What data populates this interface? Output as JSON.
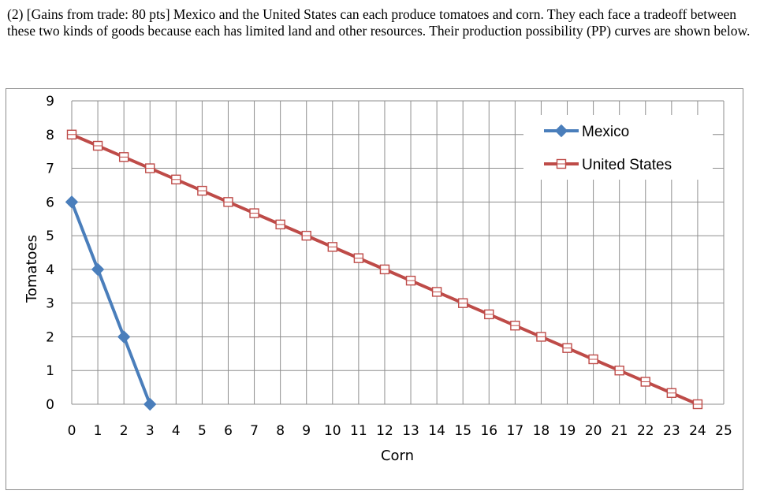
{
  "question": {
    "text": "(2)  [Gains from trade:  80 pts]  Mexico and the United States can each produce tomatoes and corn.  They each face a tradeoff between these two kinds of goods because each has limited land and other resources.  Their production possibility (PP) curves are shown below."
  },
  "chart_data": {
    "type": "line",
    "title": "",
    "xlabel": "Corn",
    "ylabel": "Tomatoes",
    "xlim": [
      0,
      25
    ],
    "ylim": [
      0,
      9
    ],
    "x_ticks": [
      0,
      1,
      2,
      3,
      4,
      5,
      6,
      7,
      8,
      9,
      10,
      11,
      12,
      13,
      14,
      15,
      16,
      17,
      18,
      19,
      20,
      21,
      22,
      23,
      24,
      25
    ],
    "y_ticks": [
      0,
      1,
      2,
      3,
      4,
      5,
      6,
      7,
      8,
      9
    ],
    "grid": true,
    "legend_position": "top-right",
    "series": [
      {
        "name": "Mexico",
        "color": "#4a7ebb",
        "marker": "filled-diamond",
        "x": [
          0,
          1,
          2,
          3
        ],
        "y": [
          6,
          4,
          2,
          0
        ]
      },
      {
        "name": "United States",
        "color": "#be4b48",
        "marker": "hollow-square",
        "x": [
          0,
          1,
          2,
          3,
          4,
          5,
          6,
          7,
          8,
          9,
          10,
          11,
          12,
          13,
          14,
          15,
          16,
          17,
          18,
          19,
          20,
          21,
          22,
          23,
          24
        ],
        "y": [
          8,
          7.667,
          7.333,
          7,
          6.667,
          6.333,
          6,
          5.667,
          5.333,
          5,
          4.667,
          4.333,
          4,
          3.667,
          3.333,
          3,
          2.667,
          2.333,
          2,
          1.667,
          1.333,
          1,
          0.667,
          0.333,
          0
        ]
      }
    ]
  }
}
